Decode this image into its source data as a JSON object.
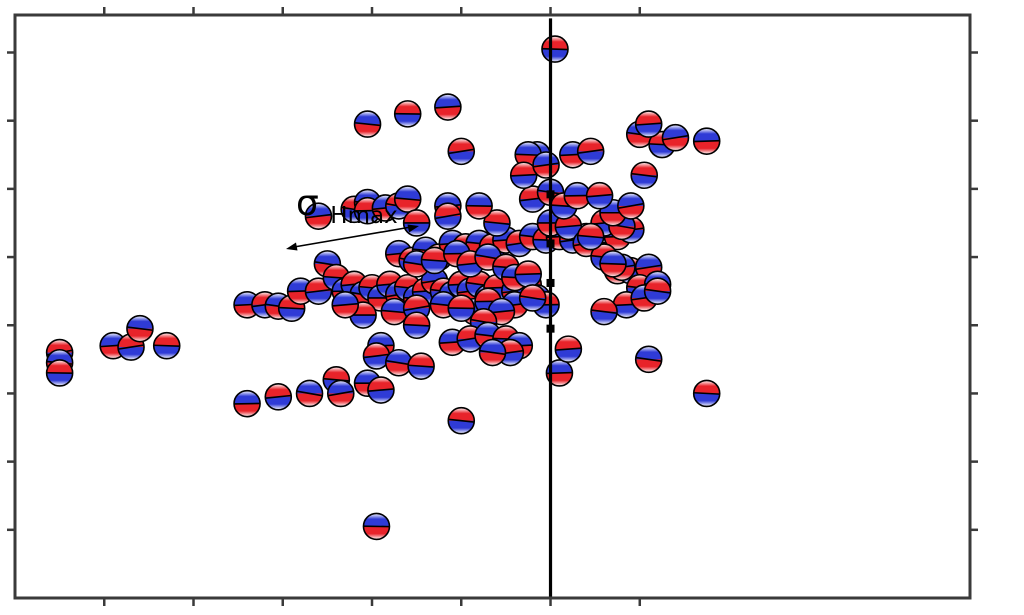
{
  "annotation": {
    "sigma_symbol": "σ",
    "subscript": "Hmax",
    "arrow": "double-headed"
  },
  "colors": {
    "compression": "#e8232a",
    "dilatation": "#2f3bd6",
    "outline": "#000000",
    "axis": "#3a3a3a",
    "fault": "#000000"
  },
  "plot": {
    "xlim": [
      -1,
      9.7
    ],
    "ylim": [
      -1,
      7.55
    ],
    "x_ticks": [
      0,
      1,
      2,
      3,
      4,
      5,
      6
    ],
    "y_ticks": [
      0,
      1,
      2,
      3,
      4,
      5,
      6,
      7
    ]
  },
  "fault_trace": {
    "x": [
      5.0,
      5.0,
      5.0,
      5.0
    ],
    "y": [
      7.5,
      4.5,
      2.0,
      -1.0
    ],
    "markers": [
      [
        5.0,
        4.92
      ],
      [
        5.0,
        4.2
      ],
      [
        5.0,
        3.62
      ],
      [
        5.0,
        2.95
      ]
    ]
  },
  "events": [
    {
      "x": -0.5,
      "y": 2.6,
      "s": -1
    },
    {
      "x": -0.5,
      "y": 2.45,
      "s": 1
    },
    {
      "x": -0.5,
      "y": 2.3,
      "s": -1
    },
    {
      "x": 0.1,
      "y": 2.7,
      "s": 1
    },
    {
      "x": 0.3,
      "y": 2.68,
      "s": -1
    },
    {
      "x": 0.4,
      "y": 2.95,
      "s": 1
    },
    {
      "x": 0.7,
      "y": 2.7,
      "s": -1
    },
    {
      "x": 1.6,
      "y": 3.3,
      "s": 1
    },
    {
      "x": 1.8,
      "y": 3.3,
      "s": -1
    },
    {
      "x": 1.95,
      "y": 3.28,
      "s": 1
    },
    {
      "x": 2.1,
      "y": 3.25,
      "s": -1
    },
    {
      "x": 2.2,
      "y": 3.5,
      "s": 1
    },
    {
      "x": 2.4,
      "y": 3.5,
      "s": -1
    },
    {
      "x": 2.5,
      "y": 3.9,
      "s": 1
    },
    {
      "x": 2.6,
      "y": 3.7,
      "s": -1
    },
    {
      "x": 2.7,
      "y": 3.5,
      "s": 1
    },
    {
      "x": 2.8,
      "y": 3.6,
      "s": -1
    },
    {
      "x": 2.9,
      "y": 3.45,
      "s": 1
    },
    {
      "x": 3.0,
      "y": 3.55,
      "s": -1
    },
    {
      "x": 3.1,
      "y": 3.4,
      "s": 1
    },
    {
      "x": 3.2,
      "y": 3.6,
      "s": -1
    },
    {
      "x": 3.3,
      "y": 3.45,
      "s": 1
    },
    {
      "x": 3.4,
      "y": 3.55,
      "s": -1
    },
    {
      "x": 3.5,
      "y": 3.4,
      "s": 1
    },
    {
      "x": 3.6,
      "y": 3.5,
      "s": -1
    },
    {
      "x": 3.7,
      "y": 3.65,
      "s": 1
    },
    {
      "x": 3.8,
      "y": 3.5,
      "s": -1
    },
    {
      "x": 3.9,
      "y": 3.45,
      "s": 1
    },
    {
      "x": 4.0,
      "y": 3.6,
      "s": -1
    },
    {
      "x": 4.1,
      "y": 3.5,
      "s": 1
    },
    {
      "x": 4.2,
      "y": 3.6,
      "s": -1
    },
    {
      "x": 4.3,
      "y": 3.4,
      "s": 1
    },
    {
      "x": 4.4,
      "y": 3.55,
      "s": -1
    },
    {
      "x": 4.6,
      "y": 3.5,
      "s": 1
    },
    {
      "x": 4.75,
      "y": 3.6,
      "s": -1
    },
    {
      "x": 4.85,
      "y": 3.4,
      "s": 1
    },
    {
      "x": 4.95,
      "y": 3.3,
      "s": -1
    },
    {
      "x": 3.3,
      "y": 4.05,
      "s": 1
    },
    {
      "x": 3.45,
      "y": 3.95,
      "s": -1
    },
    {
      "x": 3.6,
      "y": 4.1,
      "s": 1
    },
    {
      "x": 3.75,
      "y": 4.0,
      "s": -1
    },
    {
      "x": 3.9,
      "y": 4.2,
      "s": 1
    },
    {
      "x": 4.05,
      "y": 4.15,
      "s": -1
    },
    {
      "x": 4.2,
      "y": 4.2,
      "s": 1
    },
    {
      "x": 4.35,
      "y": 4.15,
      "s": -1
    },
    {
      "x": 4.5,
      "y": 4.25,
      "s": 1
    },
    {
      "x": 4.65,
      "y": 4.2,
      "s": -1
    },
    {
      "x": 4.8,
      "y": 4.3,
      "s": 1
    },
    {
      "x": 4.95,
      "y": 4.25,
      "s": -1
    },
    {
      "x": 5.1,
      "y": 4.3,
      "s": 1
    },
    {
      "x": 5.25,
      "y": 4.25,
      "s": -1
    },
    {
      "x": 5.4,
      "y": 4.3,
      "s": 1
    },
    {
      "x": 5.6,
      "y": 4.4,
      "s": -1
    },
    {
      "x": 5.75,
      "y": 4.3,
      "s": 1
    },
    {
      "x": 5.9,
      "y": 4.4,
      "s": -1
    },
    {
      "x": 3.5,
      "y": 3.9,
      "s": 1
    },
    {
      "x": 3.7,
      "y": 3.95,
      "s": -1
    },
    {
      "x": 3.95,
      "y": 4.05,
      "s": 1
    },
    {
      "x": 4.1,
      "y": 3.9,
      "s": -1
    },
    {
      "x": 4.3,
      "y": 4.0,
      "s": 1
    },
    {
      "x": 4.5,
      "y": 3.85,
      "s": -1
    },
    {
      "x": 5.0,
      "y": 4.5,
      "s": 1
    },
    {
      "x": 5.2,
      "y": 4.45,
      "s": -1
    },
    {
      "x": 5.4,
      "y": 4.2,
      "s": 1
    },
    {
      "x": 5.6,
      "y": 4.0,
      "s": -1
    },
    {
      "x": 5.75,
      "y": 3.8,
      "s": 1
    },
    {
      "x": 5.9,
      "y": 3.8,
      "s": -1
    },
    {
      "x": 6.1,
      "y": 3.85,
      "s": 1
    },
    {
      "x": 6.0,
      "y": 3.55,
      "s": -1
    },
    {
      "x": 6.2,
      "y": 3.6,
      "s": 1
    },
    {
      "x": 5.85,
      "y": 3.3,
      "s": -1
    },
    {
      "x": 6.05,
      "y": 3.4,
      "s": 1
    },
    {
      "x": 6.2,
      "y": 3.5,
      "s": -1
    },
    {
      "x": 4.6,
      "y": 3.7,
      "s": 1
    },
    {
      "x": 4.75,
      "y": 3.75,
      "s": -1
    },
    {
      "x": 4.6,
      "y": 3.3,
      "s": 1
    },
    {
      "x": 4.8,
      "y": 3.4,
      "s": -1
    },
    {
      "x": 4.15,
      "y": 3.2,
      "s": 1
    },
    {
      "x": 4.3,
      "y": 3.35,
      "s": -1
    },
    {
      "x": 4.45,
      "y": 3.2,
      "s": 1
    },
    {
      "x": 4.25,
      "y": 3.05,
      "s": -1
    },
    {
      "x": 3.25,
      "y": 3.2,
      "s": 1
    },
    {
      "x": 2.9,
      "y": 3.15,
      "s": -1
    },
    {
      "x": 2.7,
      "y": 3.3,
      "s": 1
    },
    {
      "x": 3.5,
      "y": 3.25,
      "s": -1
    },
    {
      "x": 3.8,
      "y": 3.3,
      "s": 1
    },
    {
      "x": 4.0,
      "y": 3.25,
      "s": -1
    },
    {
      "x": 3.9,
      "y": 2.75,
      "s": 1
    },
    {
      "x": 4.1,
      "y": 2.8,
      "s": -1
    },
    {
      "x": 4.3,
      "y": 2.85,
      "s": 1
    },
    {
      "x": 4.5,
      "y": 2.8,
      "s": -1
    },
    {
      "x": 4.65,
      "y": 2.7,
      "s": 1
    },
    {
      "x": 4.55,
      "y": 2.6,
      "s": -1
    },
    {
      "x": 4.35,
      "y": 2.6,
      "s": 1
    },
    {
      "x": 3.5,
      "y": 3.0,
      "s": -1
    },
    {
      "x": 3.1,
      "y": 2.7,
      "s": 1
    },
    {
      "x": 2.4,
      "y": 4.6,
      "s": 1
    },
    {
      "x": 2.8,
      "y": 4.7,
      "s": -1
    },
    {
      "x": 2.95,
      "y": 4.8,
      "s": 1
    },
    {
      "x": 2.95,
      "y": 4.68,
      "s": -1
    },
    {
      "x": 3.15,
      "y": 4.72,
      "s": 1
    },
    {
      "x": 3.3,
      "y": 4.75,
      "s": -1
    },
    {
      "x": 3.4,
      "y": 4.85,
      "s": 1
    },
    {
      "x": 3.5,
      "y": 4.5,
      "s": -1
    },
    {
      "x": 3.85,
      "y": 4.75,
      "s": 1
    },
    {
      "x": 3.85,
      "y": 4.6,
      "s": -1
    },
    {
      "x": 2.95,
      "y": 5.95,
      "s": 1
    },
    {
      "x": 3.4,
      "y": 6.1,
      "s": -1
    },
    {
      "x": 3.85,
      "y": 6.2,
      "s": 1
    },
    {
      "x": 4.0,
      "y": 5.55,
      "s": -1
    },
    {
      "x": 4.85,
      "y": 5.5,
      "s": 1
    },
    {
      "x": 5.05,
      "y": 7.05,
      "s": -1
    },
    {
      "x": 5.25,
      "y": 5.5,
      "s": 1
    },
    {
      "x": 5.45,
      "y": 5.55,
      "s": -1
    },
    {
      "x": 6.0,
      "y": 5.8,
      "s": 1
    },
    {
      "x": 6.25,
      "y": 5.65,
      "s": -1
    },
    {
      "x": 6.75,
      "y": 5.7,
      "s": 1
    },
    {
      "x": 4.8,
      "y": 4.85,
      "s": -1
    },
    {
      "x": 5.0,
      "y": 4.95,
      "s": 1
    },
    {
      "x": 5.15,
      "y": 4.75,
      "s": -1
    },
    {
      "x": 5.3,
      "y": 4.9,
      "s": 1
    },
    {
      "x": 5.6,
      "y": 4.5,
      "s": -1
    },
    {
      "x": 5.8,
      "y": 4.45,
      "s": 1
    },
    {
      "x": 5.45,
      "y": 4.3,
      "s": -1
    },
    {
      "x": 5.7,
      "y": 4.65,
      "s": 1
    },
    {
      "x": 5.55,
      "y": 4.9,
      "s": -1
    },
    {
      "x": 5.9,
      "y": 4.75,
      "s": 1
    },
    {
      "x": 4.4,
      "y": 4.5,
      "s": -1
    },
    {
      "x": 4.2,
      "y": 4.75,
      "s": 1
    },
    {
      "x": 6.1,
      "y": 5.95,
      "s": -1
    },
    {
      "x": 6.4,
      "y": 5.75,
      "s": 1
    },
    {
      "x": 6.05,
      "y": 5.2,
      "s": -1
    },
    {
      "x": 4.75,
      "y": 5.5,
      "s": 1
    },
    {
      "x": 4.7,
      "y": 5.2,
      "s": -1
    },
    {
      "x": 4.95,
      "y": 5.35,
      "s": 1
    },
    {
      "x": 6.1,
      "y": 2.5,
      "s": 1
    },
    {
      "x": 6.75,
      "y": 2.0,
      "s": -1
    },
    {
      "x": 5.1,
      "y": 2.3,
      "s": 1
    },
    {
      "x": 3.05,
      "y": 2.55,
      "s": -1
    },
    {
      "x": 3.3,
      "y": 2.45,
      "s": 1
    },
    {
      "x": 3.55,
      "y": 2.4,
      "s": -1
    },
    {
      "x": 1.6,
      "y": 1.85,
      "s": 1
    },
    {
      "x": 1.95,
      "y": 1.95,
      "s": -1
    },
    {
      "x": 2.3,
      "y": 2.0,
      "s": 1
    },
    {
      "x": 2.6,
      "y": 2.2,
      "s": -1
    },
    {
      "x": 2.95,
      "y": 2.15,
      "s": 1
    },
    {
      "x": 3.1,
      "y": 2.05,
      "s": -1
    },
    {
      "x": 2.65,
      "y": 2.0,
      "s": 1
    },
    {
      "x": 4.0,
      "y": 1.6,
      "s": -1
    },
    {
      "x": 3.05,
      "y": 0.05,
      "s": 1
    },
    {
      "x": 5.2,
      "y": 2.65,
      "s": -1
    },
    {
      "x": 5.8,
      "y": 3.85,
      "s": 1
    },
    {
      "x": 5.6,
      "y": 3.2,
      "s": -1
    },
    {
      "x": 5.7,
      "y": 3.9,
      "s": 1
    }
  ]
}
